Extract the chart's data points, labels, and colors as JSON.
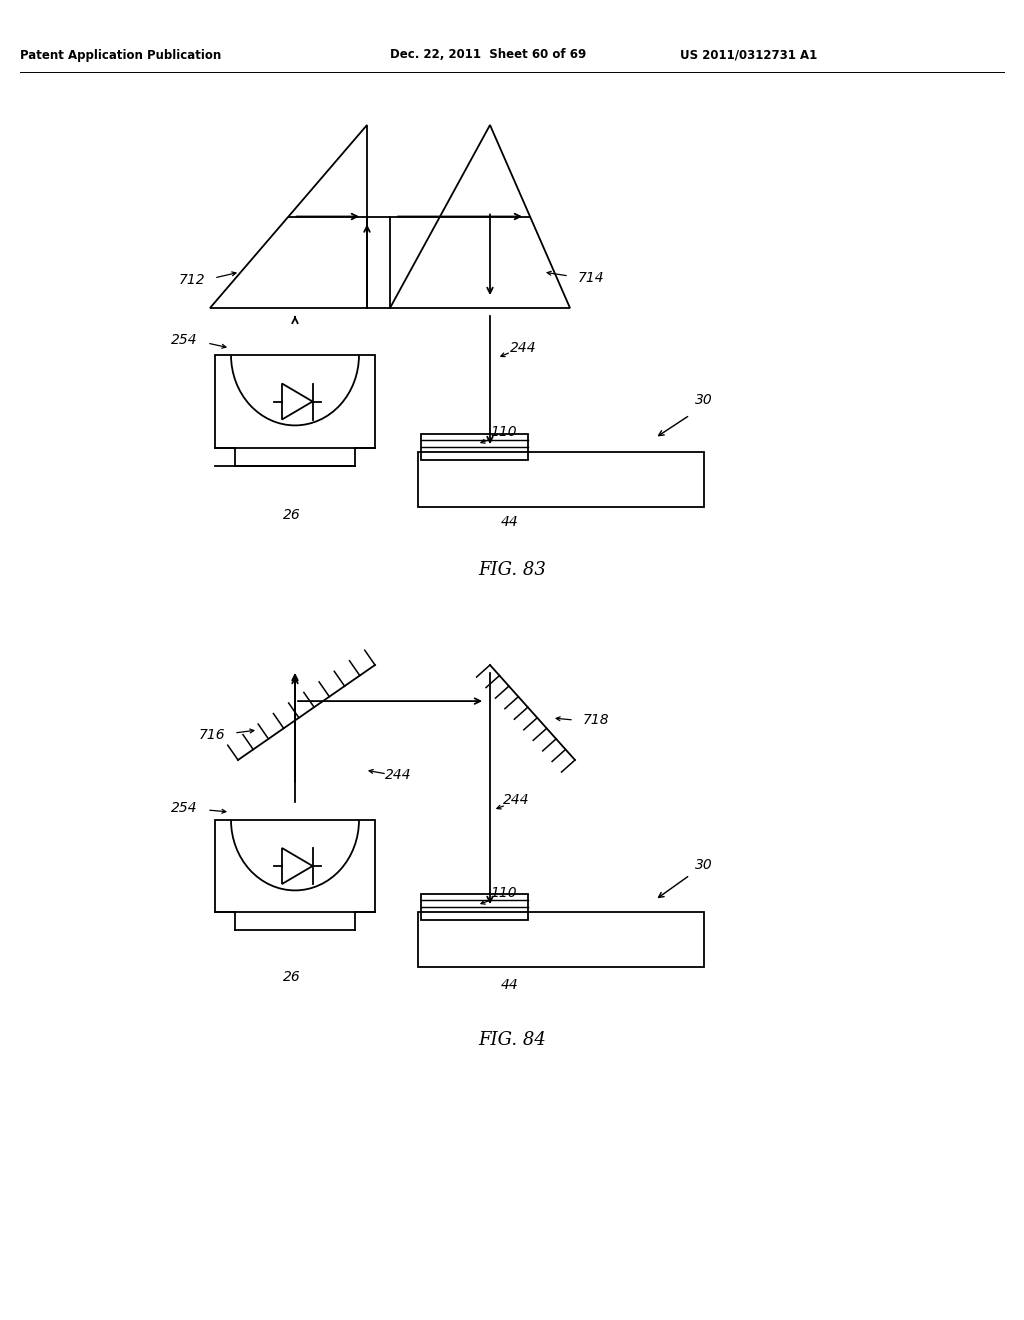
{
  "bg_color": "#ffffff",
  "line_color": "#000000",
  "header_text_left": "Patent Application Publication",
  "header_text_mid": "Dec. 22, 2011  Sheet 60 of 69",
  "header_text_right": "US 2011/0312731 A1",
  "fig83_label": "FIG. 83",
  "fig84_label": "FIG. 84"
}
